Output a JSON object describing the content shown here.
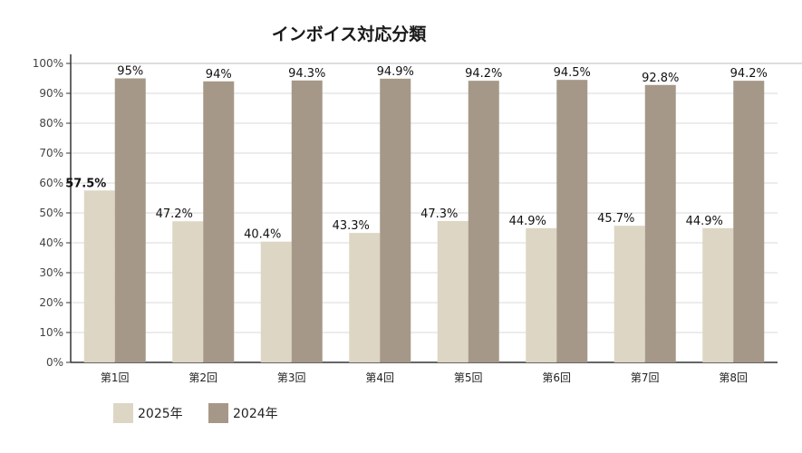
{
  "chart_data": {
    "type": "bar",
    "title": "インボイス対応分類",
    "xlabel": "",
    "ylabel": "",
    "ylim": [
      0,
      100
    ],
    "yticks": [
      "0%",
      "10%",
      "20%",
      "30%",
      "40%",
      "50%",
      "60%",
      "70%",
      "80%",
      "90%",
      "100%"
    ],
    "categories": [
      "第1回",
      "第2回",
      "第3回",
      "第4回",
      "第5回",
      "第6回",
      "第7回",
      "第8回"
    ],
    "series": [
      {
        "name": "2025年",
        "color": "#ddd6c4",
        "values": [
          57.5,
          47.2,
          40.4,
          43.3,
          47.3,
          44.9,
          45.7,
          44.9
        ],
        "labels": [
          "57.5%",
          "47.2%",
          "40.4%",
          "43.3%",
          "47.3%",
          "44.9%",
          "45.7%",
          "44.9%"
        ]
      },
      {
        "name": "2024年",
        "color": "#a69888",
        "values": [
          95,
          94,
          94.3,
          94.9,
          94.2,
          94.5,
          92.8,
          94.2
        ],
        "labels": [
          "95%",
          "94%",
          "94.3%",
          "94.9%",
          "94.2%",
          "94.5%",
          "92.8%",
          "94.2%"
        ]
      }
    ],
    "grid": true,
    "legend_position": "bottom-left"
  }
}
